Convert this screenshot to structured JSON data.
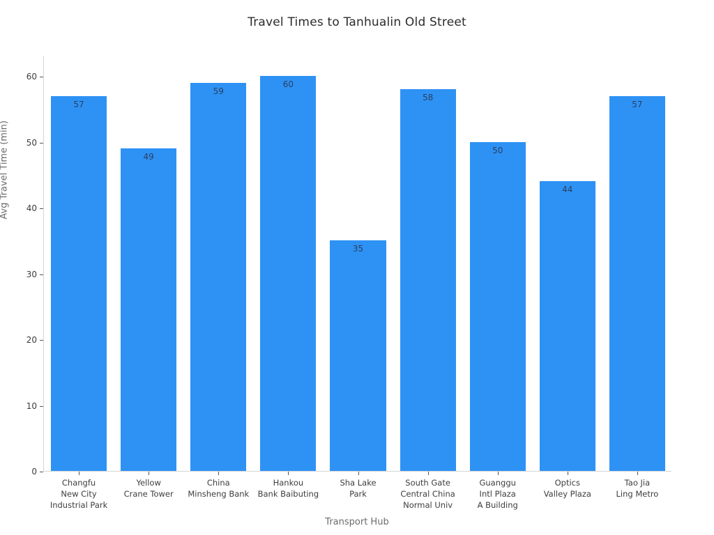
{
  "chart_data": {
    "type": "bar",
    "title": "Travel Times to Tanhualin Old Street",
    "xlabel": "Transport Hub",
    "ylabel": "Avg Travel Time (min)",
    "categories": [
      "Changfu\nNew City\nIndustrial Park",
      "Yellow\nCrane Tower",
      "China\nMinsheng Bank",
      "Hankou\nBank Baibuting",
      "Sha Lake\nPark",
      "South Gate\nCentral China\nNormal Univ",
      "Guanggu\nIntl Plaza\nA Building",
      "Optics\nValley Plaza",
      "Tao Jia\nLing Metro"
    ],
    "values": [
      57,
      49,
      59,
      60,
      35,
      58,
      50,
      44,
      57
    ],
    "ylim": [
      0,
      63.2
    ],
    "yticks": [
      0,
      10,
      20,
      30,
      40,
      50,
      60
    ],
    "bar_color": "#2e92f5",
    "value_label_color": "#2a3f5f",
    "axis_line_color": "#d4d4d4",
    "grid": false,
    "legend": false,
    "value_labels_position": "inside-top",
    "bar_fraction_of_slot": 0.8
  }
}
